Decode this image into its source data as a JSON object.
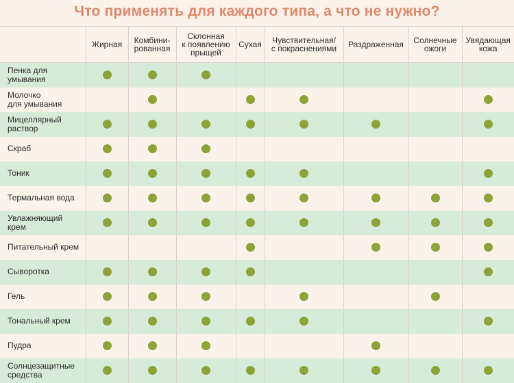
{
  "title": "Что применять для каждого типа, а что не нужно?",
  "columns": [
    "Жирная",
    "Комбини-\nрованная",
    "Склонная\nк появлению\nпрыщей",
    "Сухая",
    "Чувствительная/\nс покраснениями",
    "Раздраженная",
    "Солнечные\nожоги",
    "Увядающая\nкожа"
  ],
  "rows": [
    {
      "label": "Пенка для\nумывания",
      "marks": [
        1,
        1,
        1,
        0,
        0,
        0,
        0,
        0
      ]
    },
    {
      "label": "Молочко\nдля умывания",
      "marks": [
        0,
        1,
        0,
        1,
        1,
        0,
        0,
        1
      ]
    },
    {
      "label": "Мицеллярный\nраствор",
      "marks": [
        1,
        1,
        1,
        1,
        1,
        1,
        0,
        1
      ]
    },
    {
      "label": "Скраб",
      "marks": [
        1,
        1,
        1,
        0,
        0,
        0,
        0,
        0
      ]
    },
    {
      "label": "Тоник",
      "marks": [
        1,
        1,
        1,
        1,
        1,
        0,
        0,
        1
      ]
    },
    {
      "label": "Термальная вода",
      "marks": [
        1,
        1,
        1,
        1,
        1,
        1,
        1,
        1
      ]
    },
    {
      "label": "Увлажняющий\nкрем",
      "marks": [
        1,
        1,
        1,
        1,
        1,
        1,
        1,
        1
      ]
    },
    {
      "label": "Питательный крем",
      "marks": [
        0,
        0,
        0,
        1,
        0,
        1,
        1,
        1
      ]
    },
    {
      "label": "Сыворотка",
      "marks": [
        1,
        1,
        1,
        1,
        0,
        0,
        0,
        1
      ]
    },
    {
      "label": "Гель",
      "marks": [
        1,
        1,
        1,
        0,
        1,
        0,
        1,
        0
      ]
    },
    {
      "label": "Тональный крем",
      "marks": [
        1,
        1,
        1,
        1,
        1,
        0,
        0,
        1
      ]
    },
    {
      "label": "Пудра",
      "marks": [
        1,
        1,
        1,
        0,
        0,
        1,
        0,
        0
      ]
    },
    {
      "label": "Солнцезащитные\nсредства",
      "marks": [
        1,
        1,
        1,
        1,
        1,
        1,
        1,
        1
      ]
    }
  ],
  "colors": {
    "title": "#e0876a",
    "dot": "#8ca33a",
    "stripe": "#d7ebd9",
    "background": "#fbf3ea"
  }
}
